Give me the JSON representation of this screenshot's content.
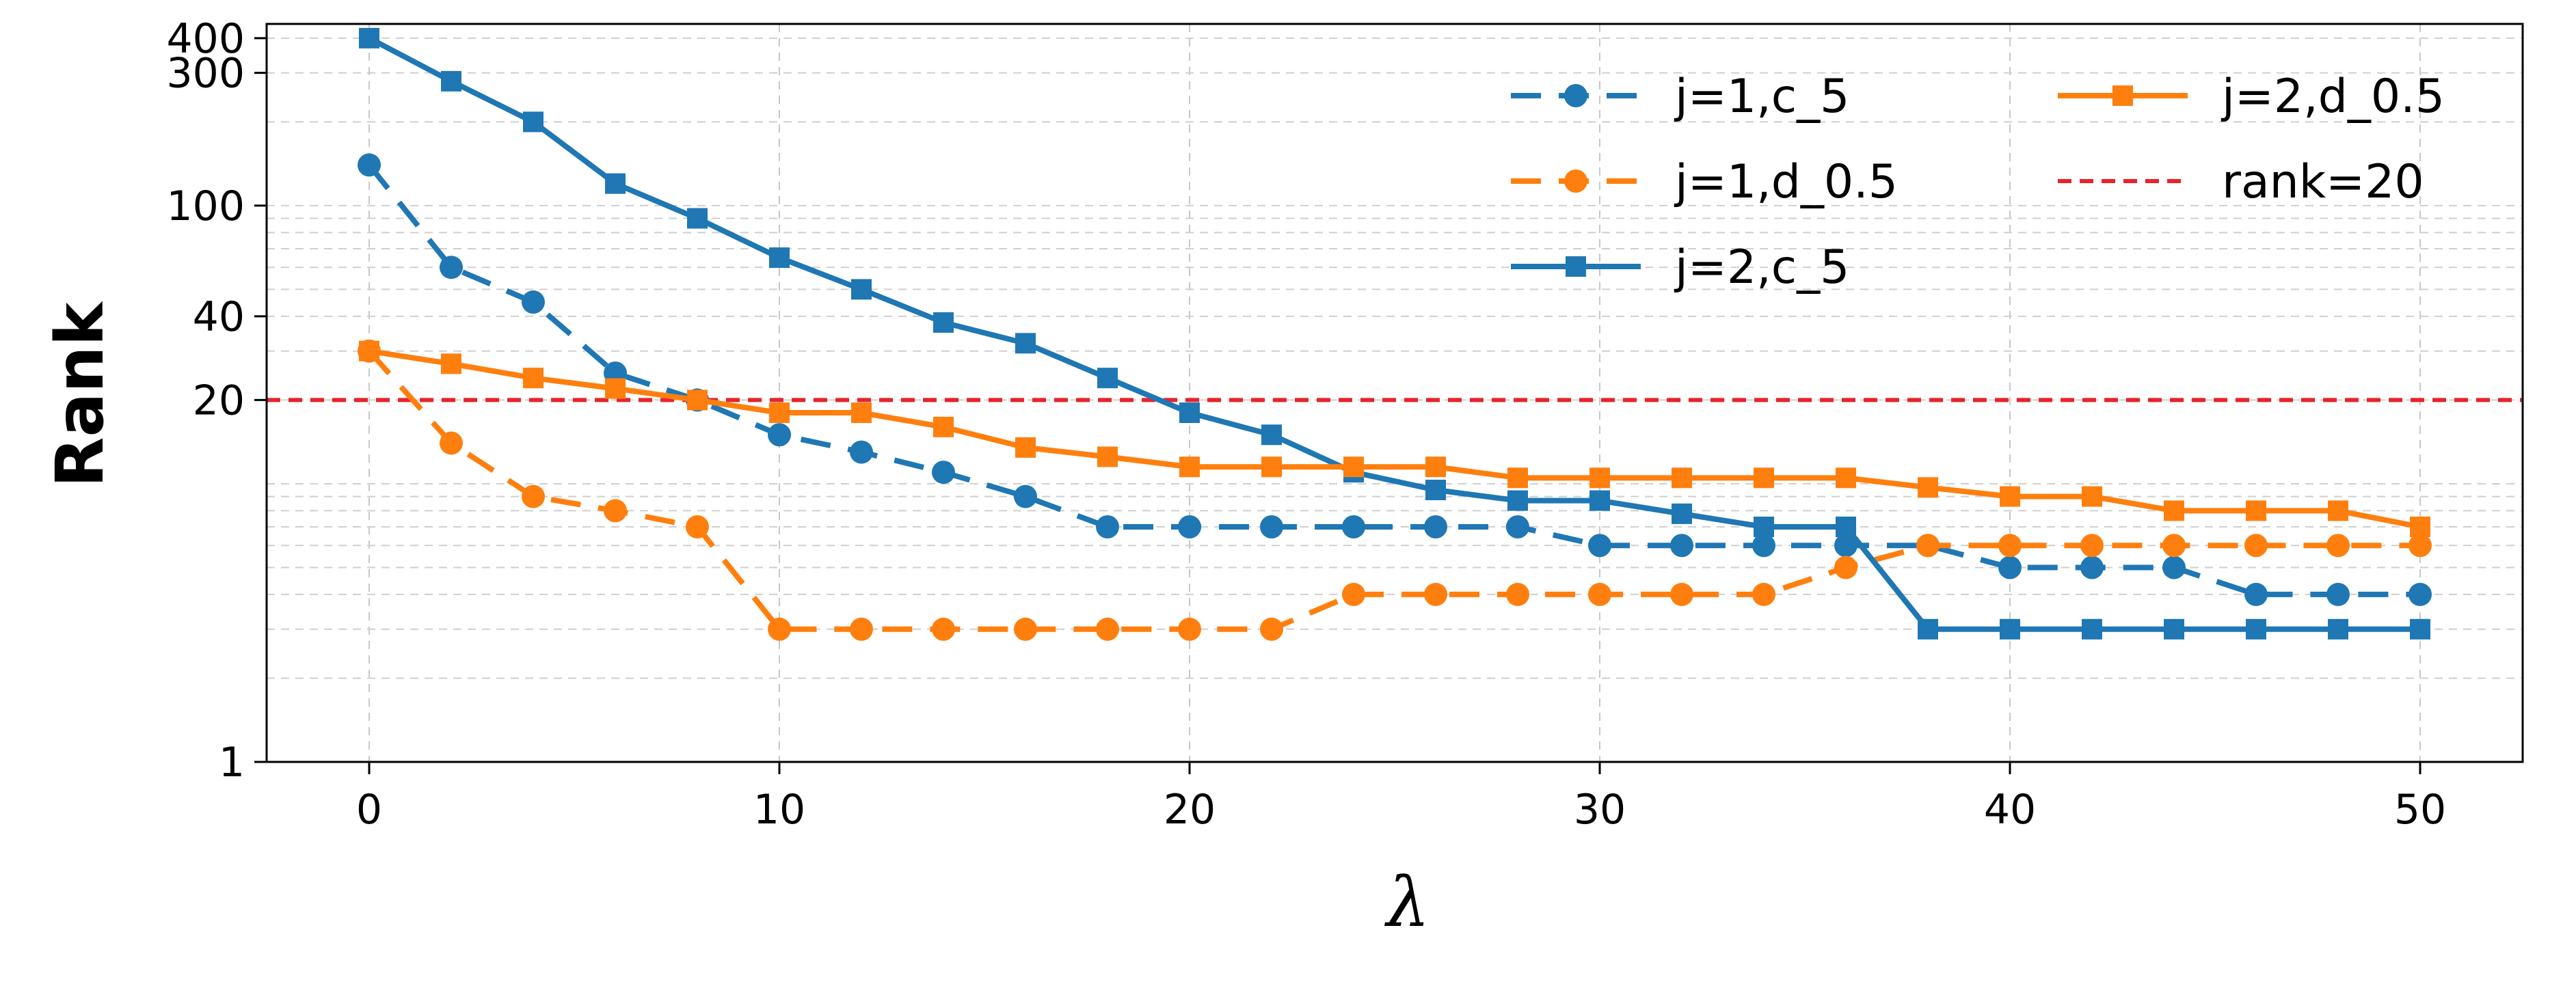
{
  "chart_data": {
    "type": "line",
    "xlabel": "λ",
    "ylabel": "Rank",
    "xlim": [
      -2.5,
      52.5
    ],
    "ylim": [
      1,
      450
    ],
    "yscale": "log",
    "grid": true,
    "x_ticks": [
      0,
      10,
      20,
      30,
      40,
      50
    ],
    "y_ticks": [
      1,
      20,
      40,
      100,
      300,
      400
    ],
    "legend_position": "top-right",
    "x": [
      0,
      2,
      4,
      6,
      8,
      10,
      12,
      14,
      16,
      18,
      20,
      22,
      24,
      26,
      28,
      30,
      32,
      34,
      36,
      38,
      40,
      42,
      44,
      46,
      48,
      50
    ],
    "series": [
      {
        "name": "j=1,c_5",
        "color": "#1f77b4",
        "line_style": "dashed",
        "marker": "circle",
        "values": [
          140,
          60,
          45,
          25,
          20,
          15,
          13,
          11,
          9,
          7,
          7,
          7,
          7,
          7,
          7,
          6,
          6,
          6,
          6,
          6,
          5,
          5,
          5,
          4,
          4,
          4
        ]
      },
      {
        "name": "j=1,d_0.5",
        "color": "#ff7f0e",
        "line_style": "dashed",
        "marker": "circle",
        "values": [
          30,
          14,
          9,
          8,
          7,
          3,
          3,
          3,
          3,
          3,
          3,
          3,
          4,
          4,
          4,
          4,
          4,
          4,
          5,
          6,
          6,
          6,
          6,
          6,
          6,
          6
        ]
      },
      {
        "name": "j=2,c_5",
        "color": "#1f77b4",
        "line_style": "solid",
        "marker": "square",
        "values": [
          400,
          280,
          200,
          120,
          90,
          65,
          50,
          38,
          32,
          24,
          18,
          15,
          11,
          9.5,
          8.7,
          8.7,
          7.8,
          7,
          7,
          3,
          3,
          3,
          3,
          3,
          3,
          3
        ]
      },
      {
        "name": "j=2,d_0.5",
        "color": "#ff7f0e",
        "line_style": "solid",
        "marker": "square",
        "values": [
          30,
          27,
          24,
          22,
          20,
          18,
          18,
          16,
          13.5,
          12.5,
          11.5,
          11.5,
          11.5,
          11.5,
          10.5,
          10.5,
          10.5,
          10.5,
          10.5,
          9.7,
          9,
          9,
          8,
          8,
          8,
          7
        ]
      }
    ],
    "reference_lines": [
      {
        "name": "rank=20",
        "y": 20,
        "color": "#e8242a",
        "line_style": "dashed"
      }
    ]
  }
}
